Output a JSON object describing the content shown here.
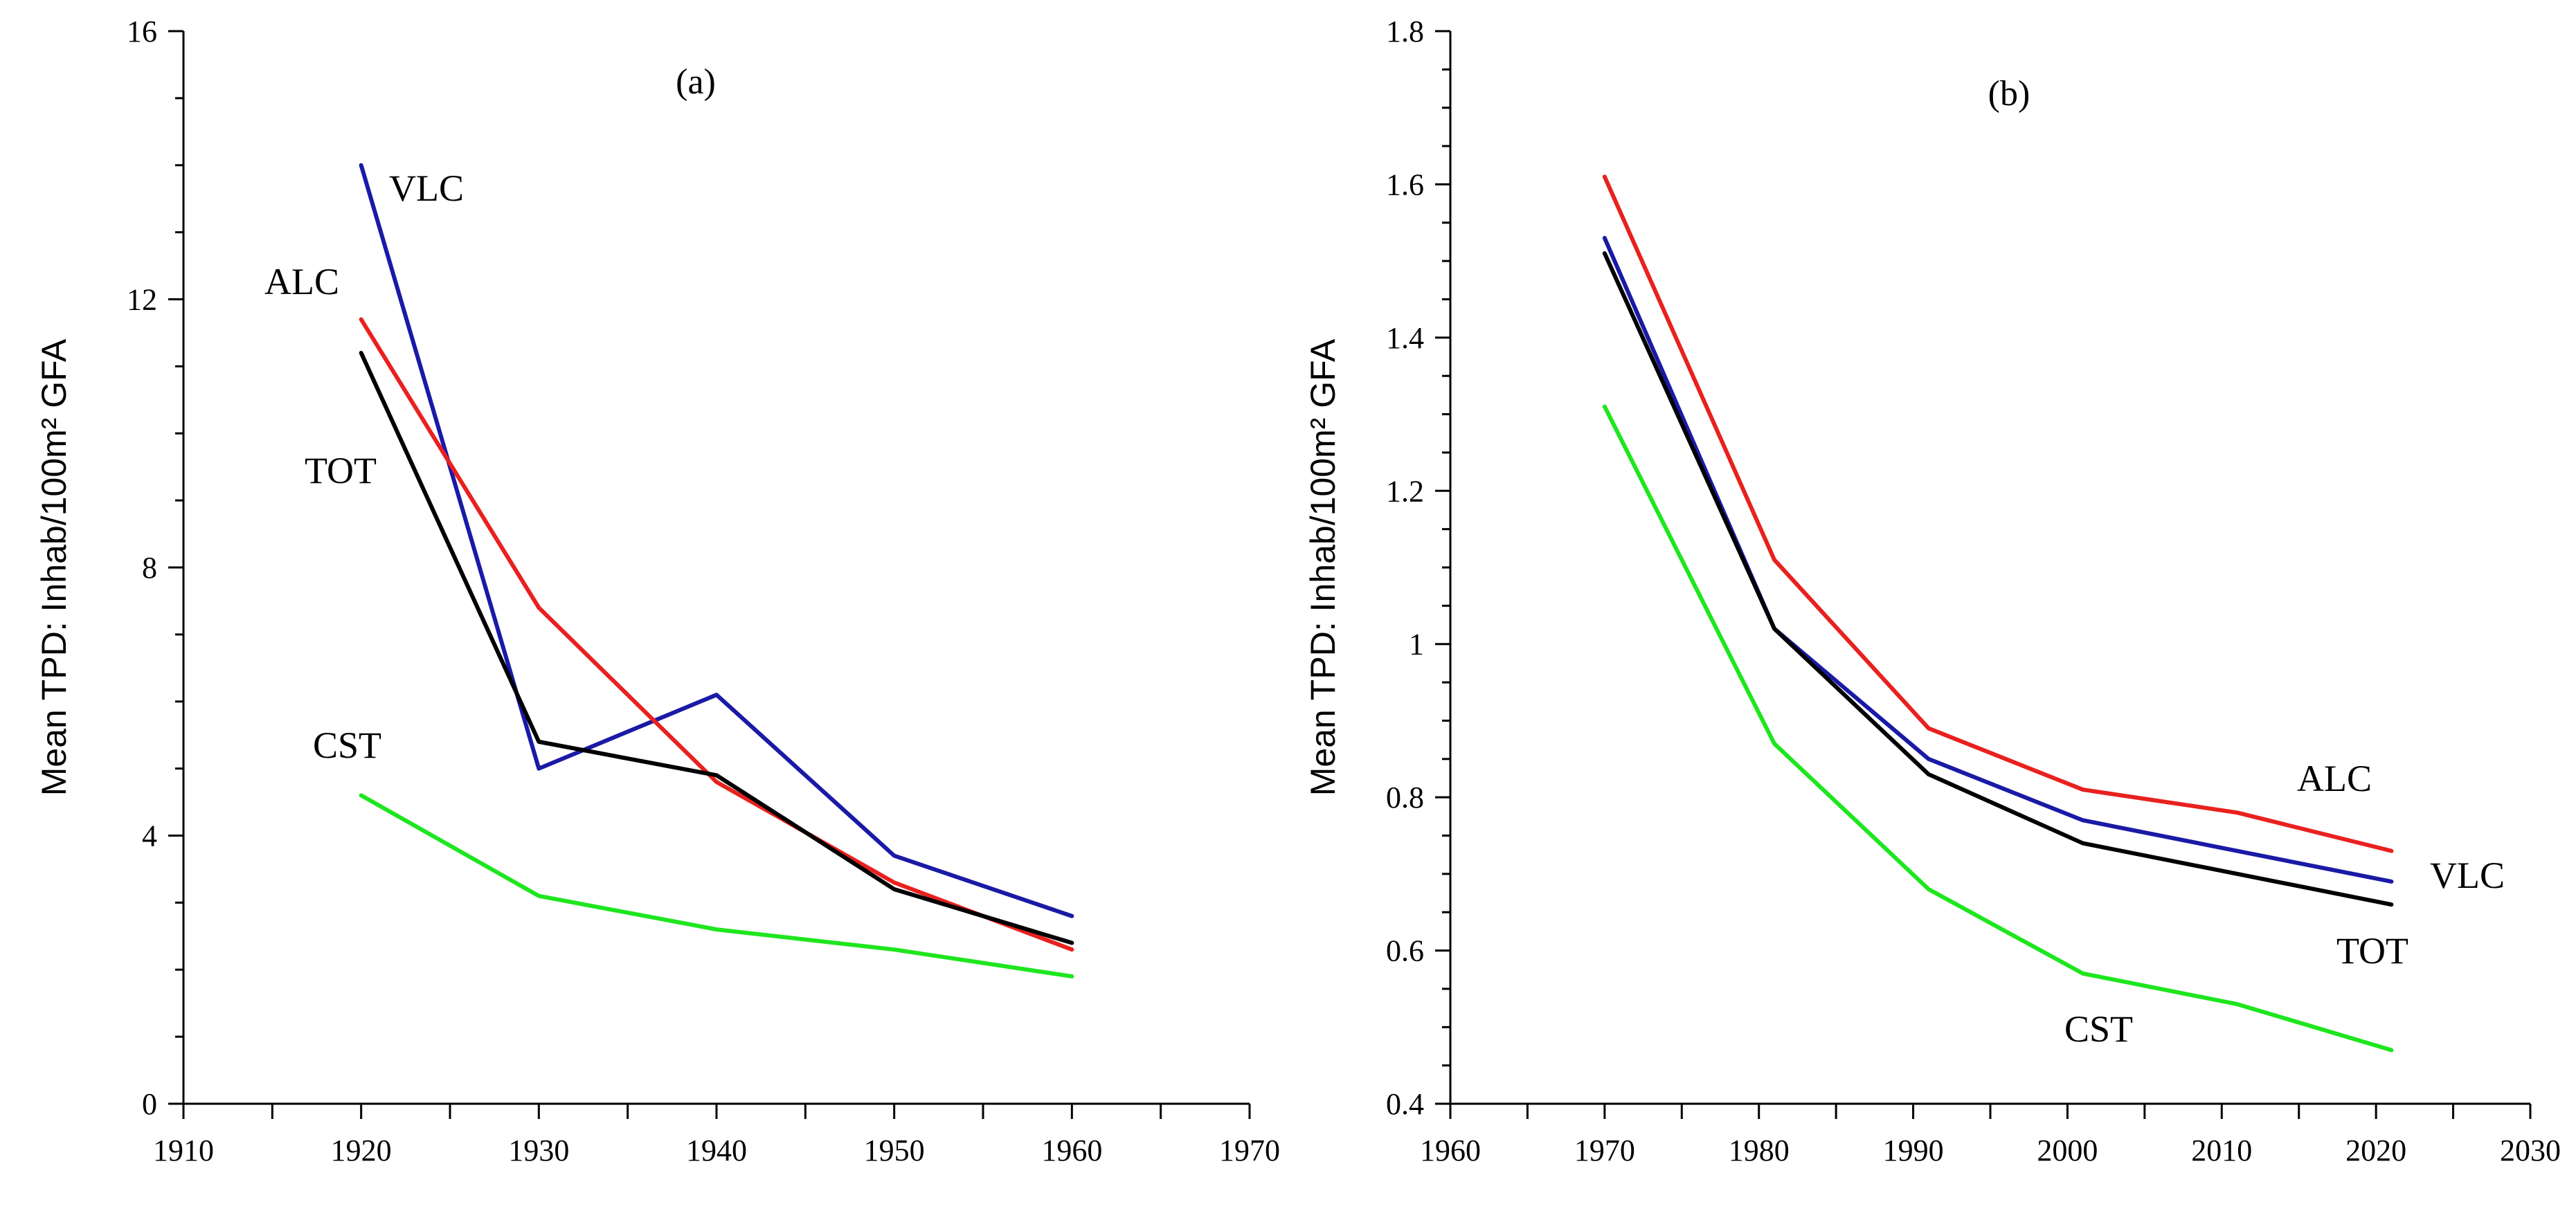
{
  "chart_data": [
    {
      "type": "line",
      "title": "(a)",
      "xlabel": "",
      "ylabel": "Mean TPD: Inhab/100m² GFA",
      "xlim": [
        1910,
        1970
      ],
      "ylim": [
        0,
        16
      ],
      "xticks": [
        "1910",
        "1920",
        "1930",
        "1940",
        "1950",
        "1960",
        "1970"
      ],
      "yticks": [
        "0",
        "4",
        "8",
        "12",
        "16"
      ],
      "series": [
        {
          "name": "VLC",
          "color": "#1a1aa6",
          "x": [
            1920,
            1930,
            1940,
            1950,
            1960
          ],
          "values": [
            14.0,
            5.0,
            6.1,
            3.7,
            2.8
          ]
        },
        {
          "name": "ALC",
          "color": "#e8211f",
          "x": [
            1920,
            1930,
            1940,
            1950,
            1960
          ],
          "values": [
            11.7,
            7.4,
            4.8,
            3.3,
            2.3
          ]
        },
        {
          "name": "TOT",
          "color": "#000000",
          "x": [
            1920,
            1930,
            1940,
            1950,
            1960
          ],
          "values": [
            11.2,
            5.4,
            4.9,
            3.2,
            2.4
          ]
        },
        {
          "name": "CST",
          "color": "#1ee61e",
          "x": [
            1920,
            1930,
            1940,
            1950,
            1960
          ],
          "values": [
            4.6,
            3.1,
            2.6,
            2.3,
            1.9
          ]
        }
      ]
    },
    {
      "type": "line",
      "title": "(b)",
      "xlabel": "",
      "ylabel": "Mean TPD: Inhab/100m² GFA",
      "xlim": [
        1960,
        2030
      ],
      "ylim": [
        0.4,
        1.8
      ],
      "xticks": [
        "1960",
        "1970",
        "1980",
        "1990",
        "2000",
        "2010",
        "2020",
        "2030"
      ],
      "yticks": [
        "0.4",
        "0.6",
        "0.8",
        "1",
        "1.2",
        "1.4",
        "1.6",
        "1.8"
      ],
      "series": [
        {
          "name": "ALC",
          "color": "#e8211f",
          "x": [
            1970,
            1981,
            1991,
            2001,
            2011,
            2021
          ],
          "values": [
            1.61,
            1.11,
            0.89,
            0.81,
            0.78,
            0.73
          ]
        },
        {
          "name": "VLC",
          "color": "#1a1aa6",
          "x": [
            1970,
            1981,
            1991,
            2001,
            2011,
            2021
          ],
          "values": [
            1.53,
            1.02,
            0.85,
            0.77,
            0.73,
            0.69
          ]
        },
        {
          "name": "TOT",
          "color": "#000000",
          "x": [
            1970,
            1981,
            1991,
            2001,
            2011,
            2021
          ],
          "values": [
            1.51,
            1.02,
            0.83,
            0.74,
            0.7,
            0.66
          ]
        },
        {
          "name": "CST",
          "color": "#1ee61e",
          "x": [
            1970,
            1981,
            1991,
            2001,
            2011,
            2021
          ],
          "values": [
            1.31,
            0.87,
            0.68,
            0.57,
            0.53,
            0.47
          ]
        }
      ]
    }
  ]
}
